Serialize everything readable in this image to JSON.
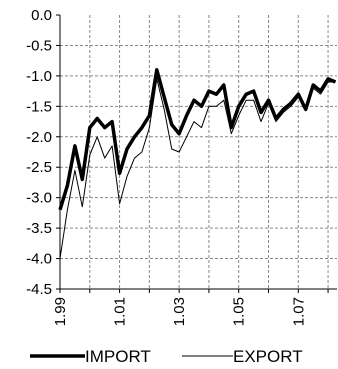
{
  "chart_data": {
    "type": "line",
    "title": "",
    "xlabel": "",
    "ylabel": "",
    "ylim": [
      -4.5,
      0.0
    ],
    "xlim": [
      1999.0,
      2008.3
    ],
    "grid": true,
    "legend_position": "bottom",
    "y_ticks": [
      "0.0",
      "-0.5",
      "-1.0",
      "-1.5",
      "-2.0",
      "-2.5",
      "-3.0",
      "-3.5",
      "-4.0",
      "-4.5"
    ],
    "y_tick_values": [
      0.0,
      -0.5,
      -1.0,
      -1.5,
      -2.0,
      -2.5,
      -3.0,
      -3.5,
      -4.0,
      -4.5
    ],
    "x_ticks": [
      "1.99",
      "1.01",
      "1.03",
      "1.05",
      "1.07"
    ],
    "x_tick_values": [
      1999,
      2001,
      2003,
      2005,
      2007
    ],
    "x_gridlines": [
      1999,
      2000,
      2001,
      2002,
      2003,
      2004,
      2005,
      2006,
      2007,
      2008
    ],
    "x": [
      1999.0,
      1999.25,
      1999.5,
      1999.75,
      2000.0,
      2000.25,
      2000.5,
      2000.75,
      2001.0,
      2001.25,
      2001.5,
      2001.75,
      2002.0,
      2002.25,
      2002.5,
      2002.75,
      2003.0,
      2003.25,
      2003.5,
      2003.75,
      2004.0,
      2004.25,
      2004.5,
      2004.75,
      2005.0,
      2005.25,
      2005.5,
      2005.75,
      2006.0,
      2006.25,
      2006.5,
      2006.75,
      2007.0,
      2007.25,
      2007.5,
      2007.75,
      2008.0,
      2008.25
    ],
    "series": [
      {
        "name": "IMPORT",
        "color": "#000000",
        "width": 3.5,
        "values": [
          -3.2,
          -2.8,
          -2.15,
          -2.7,
          -1.85,
          -1.7,
          -1.85,
          -1.75,
          -2.6,
          -2.2,
          -2.0,
          -1.85,
          -1.65,
          -0.9,
          -1.35,
          -1.8,
          -1.95,
          -1.65,
          -1.4,
          -1.5,
          -1.25,
          -1.3,
          -1.15,
          -1.85,
          -1.5,
          -1.3,
          -1.25,
          -1.6,
          -1.4,
          -1.7,
          -1.55,
          -1.45,
          -1.3,
          -1.55,
          -1.15,
          -1.25,
          -1.05,
          -1.1
        ]
      },
      {
        "name": "EXPORT",
        "color": "#000000",
        "width": 1.0,
        "values": [
          -4.0,
          -3.2,
          -2.55,
          -3.15,
          -2.3,
          -2.0,
          -2.35,
          -2.15,
          -3.1,
          -2.65,
          -2.35,
          -2.25,
          -1.85,
          -1.05,
          -1.55,
          -2.2,
          -2.25,
          -2.0,
          -1.75,
          -1.85,
          -1.5,
          -1.5,
          -1.4,
          -1.95,
          -1.65,
          -1.4,
          -1.4,
          -1.75,
          -1.45,
          -1.75,
          -1.6,
          -1.5,
          -1.35,
          -1.5,
          -1.2,
          -1.3,
          -1.1,
          -1.1
        ]
      }
    ]
  }
}
